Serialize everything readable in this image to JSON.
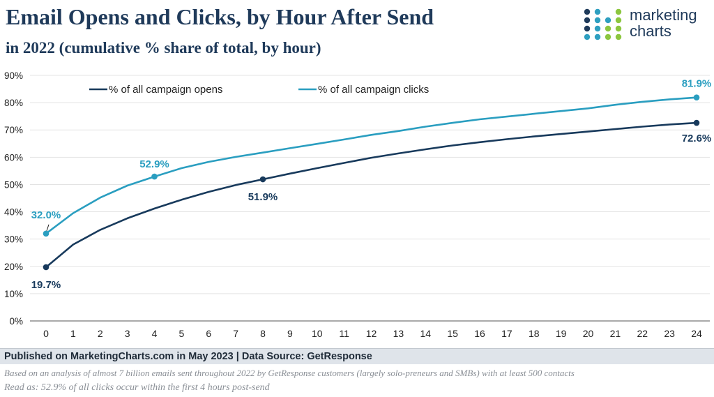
{
  "header": {
    "title": "Email Opens and Clicks, by Hour After Send",
    "subtitle": "in 2022 (cumulative % share of total, by hour)"
  },
  "logo": {
    "line1": "marketing",
    "line2": "charts",
    "colors": [
      "#1f3a5a",
      "#2e9fc0",
      "#8cc63f"
    ]
  },
  "chart_data": {
    "type": "line",
    "title": "Email Opens and Clicks, by Hour After Send",
    "subtitle": "in 2022 (cumulative % share of total, by hour)",
    "xlabel": "",
    "ylabel": "",
    "x": [
      0,
      1,
      2,
      3,
      4,
      5,
      6,
      7,
      8,
      9,
      10,
      11,
      12,
      13,
      14,
      15,
      16,
      17,
      18,
      19,
      20,
      21,
      22,
      23,
      24
    ],
    "ylim": [
      0,
      90
    ],
    "yticks": [
      "0%",
      "10%",
      "20%",
      "30%",
      "40%",
      "50%",
      "60%",
      "70%",
      "80%",
      "90%"
    ],
    "grid": true,
    "legend_position": "top-left",
    "series": [
      {
        "name": "% of all campaign opens",
        "color": "#183a5c",
        "values": [
          19.7,
          28.0,
          33.4,
          37.6,
          41.2,
          44.4,
          47.3,
          49.8,
          51.9,
          54.0,
          56.0,
          57.9,
          59.8,
          61.4,
          62.9,
          64.3,
          65.5,
          66.6,
          67.6,
          68.5,
          69.4,
          70.3,
          71.2,
          72.0,
          72.6
        ]
      },
      {
        "name": "% of all campaign clicks",
        "color": "#2a9ec0",
        "values": [
          32.0,
          39.5,
          45.2,
          49.6,
          52.9,
          56.0,
          58.3,
          60.1,
          61.7,
          63.3,
          64.9,
          66.5,
          68.2,
          69.6,
          71.2,
          72.6,
          73.9,
          74.9,
          75.9,
          76.9,
          77.9,
          79.2,
          80.3,
          81.2,
          81.9
        ]
      }
    ],
    "annotations": [
      {
        "series": 0,
        "x": 0,
        "text": "19.7%"
      },
      {
        "series": 0,
        "x": 8,
        "text": "51.9%"
      },
      {
        "series": 0,
        "x": 24,
        "text": "72.6%"
      },
      {
        "series": 1,
        "x": 0,
        "text": "32.0%"
      },
      {
        "series": 1,
        "x": 4,
        "text": "52.9%"
      },
      {
        "series": 1,
        "x": 24,
        "text": "81.9%"
      }
    ]
  },
  "footer": {
    "published": "Published on MarketingCharts.com in May 2023 | Data Source: GetResponse",
    "note1": "Based on an analysis of almost 7 billion emails sent throughout 2022 by GetResponse customers (largely solo-preneurs and SMBs) with at least 500 contacts",
    "note2": "Read as: 52.9% of all clicks occur within the first 4 hours post-send"
  }
}
